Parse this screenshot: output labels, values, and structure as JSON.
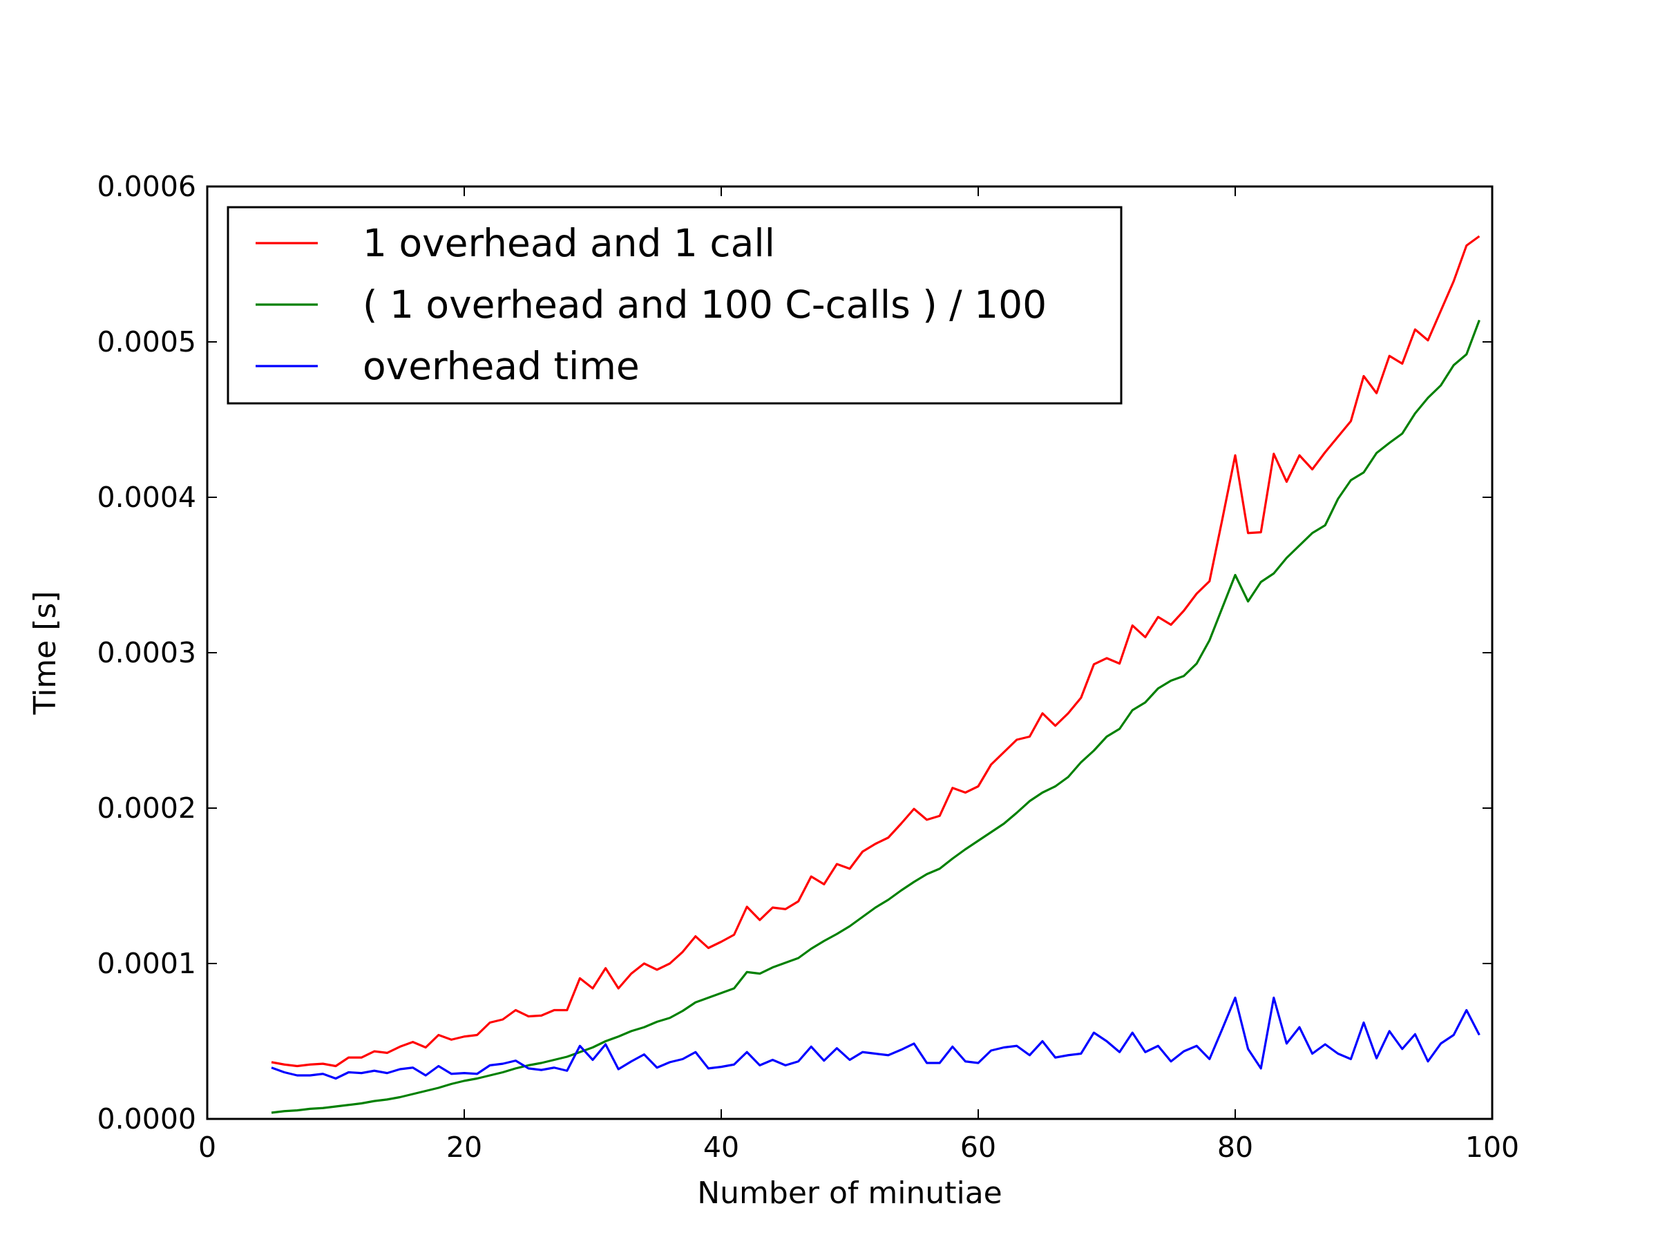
{
  "chart_data": {
    "type": "line",
    "xlabel": "Number of minutiae",
    "ylabel": "Time [s]",
    "xlim": [
      0,
      100
    ],
    "ylim": [
      0,
      0.0006
    ],
    "xticks": [
      "0",
      "20",
      "40",
      "60",
      "80",
      "100"
    ],
    "yticks": [
      "0.0000",
      "0.0001",
      "0.0002",
      "0.0003",
      "0.0004",
      "0.0005",
      "0.0006"
    ],
    "grid": false,
    "legend_position": "top-left",
    "x": [
      5,
      6,
      7,
      8,
      9,
      10,
      11,
      12,
      13,
      14,
      15,
      16,
      17,
      18,
      19,
      20,
      21,
      22,
      23,
      24,
      25,
      26,
      27,
      28,
      29,
      30,
      31,
      32,
      33,
      34,
      35,
      36,
      37,
      38,
      39,
      40,
      41,
      42,
      43,
      44,
      45,
      46,
      47,
      48,
      49,
      50,
      51,
      52,
      53,
      54,
      55,
      56,
      57,
      58,
      59,
      60,
      61,
      62,
      63,
      64,
      65,
      66,
      67,
      68,
      69,
      70,
      71,
      72,
      73,
      74,
      75,
      76,
      77,
      78,
      79,
      80,
      81,
      82,
      83,
      84,
      85,
      86,
      87,
      88,
      89,
      90,
      91,
      92,
      93,
      94,
      95,
      96,
      97,
      98,
      99
    ],
    "series": [
      {
        "name": "1 overhead and 1 call",
        "color": "#ff0000",
        "values": [
          3.65e-05,
          3.5e-05,
          3.4e-05,
          3.5e-05,
          3.55e-05,
          3.4e-05,
          3.95e-05,
          3.95e-05,
          4.35e-05,
          4.25e-05,
          4.65e-05,
          4.95e-05,
          4.6e-05,
          5.4e-05,
          5.1e-05,
          5.3e-05,
          5.4e-05,
          6.2e-05,
          6.4e-05,
          7e-05,
          6.6e-05,
          6.65e-05,
          7e-05,
          7e-05,
          9.05e-05,
          8.4e-05,
          9.7e-05,
          8.4e-05,
          9.35e-05,
          0.0001,
          9.6e-05,
          0.0001,
          0.0001075,
          0.0001175,
          0.00011,
          0.000114,
          0.0001185,
          0.0001365,
          0.000128,
          0.000136,
          0.000135,
          0.00014,
          0.000156,
          0.000151,
          0.000164,
          0.000161,
          0.000172,
          0.000177,
          0.000181,
          0.00019,
          0.0001995,
          0.0001925,
          0.000195,
          0.000213,
          0.00021,
          0.000214,
          0.000228,
          0.000236,
          0.000244,
          0.000246,
          0.000261,
          0.000253,
          0.000261,
          0.000271,
          0.0002925,
          0.0002965,
          0.000293,
          0.0003175,
          0.00031,
          0.000323,
          0.000318,
          0.000327,
          0.000338,
          0.000346,
          0.000386,
          0.000427,
          0.000377,
          0.0003775,
          0.000428,
          0.00041,
          0.000427,
          0.000418,
          0.000429,
          0.000439,
          0.000449,
          0.000478,
          0.000467,
          0.000491,
          0.000486,
          0.000508,
          0.000501,
          0.00052,
          0.000539,
          0.000562,
          0.000568
        ]
      },
      {
        "name": "( 1 overhead and 100 C-calls ) / 100",
        "color": "#008000",
        "values": [
          4e-06,
          5e-06,
          5.5e-06,
          6.5e-06,
          7e-06,
          8e-06,
          9e-06,
          1e-05,
          1.15e-05,
          1.25e-05,
          1.4e-05,
          1.6e-05,
          1.8e-05,
          2e-05,
          2.25e-05,
          2.45e-05,
          2.6e-05,
          2.8e-05,
          3e-05,
          3.25e-05,
          3.45e-05,
          3.6e-05,
          3.8e-05,
          4e-05,
          4.3e-05,
          4.6e-05,
          5e-05,
          5.3e-05,
          5.65e-05,
          5.9e-05,
          6.25e-05,
          6.5e-05,
          6.95e-05,
          7.5e-05,
          7.8e-05,
          8.1e-05,
          8.4e-05,
          9.45e-05,
          9.35e-05,
          9.75e-05,
          0.0001005,
          0.0001035,
          0.0001095,
          0.0001145,
          0.000119,
          0.000124,
          0.00013,
          0.000136,
          0.000141,
          0.000147,
          0.0001525,
          0.0001575,
          0.000161,
          0.0001675,
          0.0001735,
          0.000179,
          0.0001845,
          0.00019,
          0.000197,
          0.0002045,
          0.00021,
          0.000214,
          0.00022,
          0.0002295,
          0.000237,
          0.000246,
          0.000251,
          0.000263,
          0.000268,
          0.000277,
          0.000282,
          0.000285,
          0.000293,
          0.000308,
          0.000329,
          0.00035,
          0.000333,
          0.0003455,
          0.000351,
          0.000361,
          0.000369,
          0.000377,
          0.000382,
          0.000399,
          0.000411,
          0.000416,
          0.0004285,
          0.000435,
          0.000441,
          0.000454,
          0.000464,
          0.000472,
          0.000485,
          0.000492,
          0.000514
        ]
      },
      {
        "name": "overhead time",
        "color": "#0000ff",
        "values": [
          3.3e-05,
          3e-05,
          2.8e-05,
          2.8e-05,
          2.9e-05,
          2.6e-05,
          3e-05,
          2.95e-05,
          3.1e-05,
          2.95e-05,
          3.2e-05,
          3.3e-05,
          2.8e-05,
          3.4e-05,
          2.9e-05,
          2.95e-05,
          2.9e-05,
          3.45e-05,
          3.55e-05,
          3.75e-05,
          3.25e-05,
          3.15e-05,
          3.3e-05,
          3.1e-05,
          4.7e-05,
          3.8e-05,
          4.8e-05,
          3.2e-05,
          3.7e-05,
          4.15e-05,
          3.3e-05,
          3.65e-05,
          3.85e-05,
          4.3e-05,
          3.25e-05,
          3.35e-05,
          3.5e-05,
          4.3e-05,
          3.45e-05,
          3.8e-05,
          3.45e-05,
          3.7e-05,
          4.65e-05,
          3.75e-05,
          4.55e-05,
          3.8e-05,
          4.3e-05,
          4.2e-05,
          4.1e-05,
          4.45e-05,
          4.85e-05,
          3.6e-05,
          3.6e-05,
          4.65e-05,
          3.7e-05,
          3.6e-05,
          4.4e-05,
          4.6e-05,
          4.7e-05,
          4.1e-05,
          5e-05,
          3.95e-05,
          4.1e-05,
          4.2e-05,
          5.55e-05,
          5e-05,
          4.3e-05,
          5.55e-05,
          4.3e-05,
          4.7e-05,
          3.7e-05,
          4.35e-05,
          4.7e-05,
          3.85e-05,
          5.8e-05,
          7.8e-05,
          4.5e-05,
          3.25e-05,
          7.8e-05,
          4.85e-05,
          5.9e-05,
          4.2e-05,
          4.8e-05,
          4.2e-05,
          3.85e-05,
          6.2e-05,
          3.9e-05,
          5.65e-05,
          4.5e-05,
          5.45e-05,
          3.7e-05,
          4.85e-05,
          5.4e-05,
          7e-05,
          5.4e-05
        ]
      }
    ]
  }
}
